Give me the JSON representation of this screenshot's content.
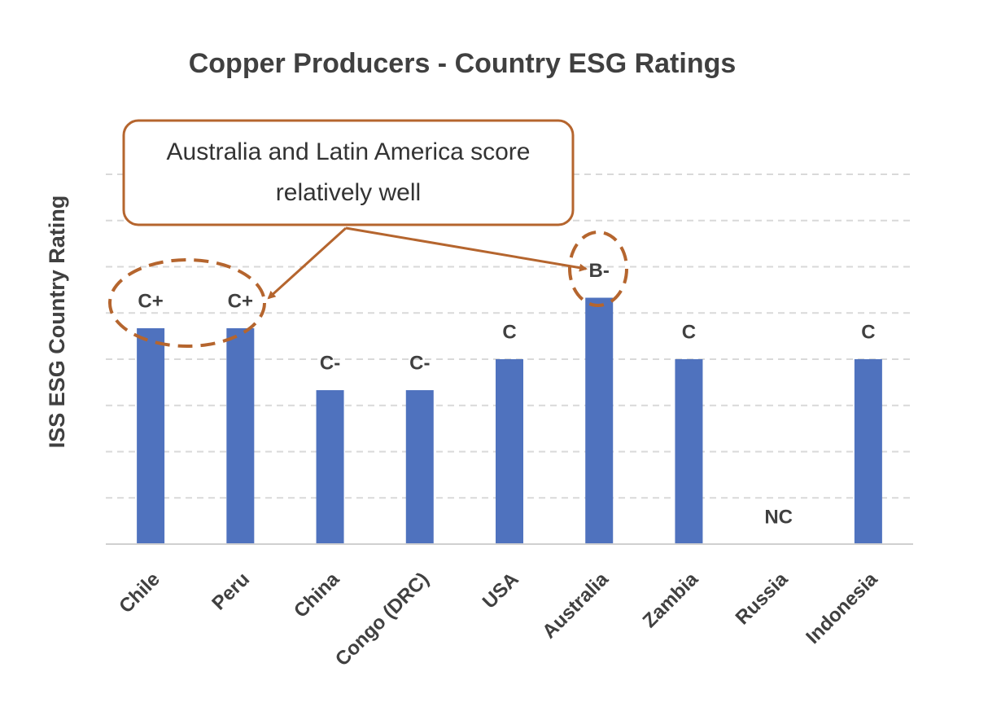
{
  "chart_data": {
    "type": "bar",
    "title": "Copper Producers - Country ESG Ratings",
    "y_label": "ISS ESG Country Rating",
    "annotation": "Australia and Latin America score relatively well",
    "categories": [
      "Chile",
      "Peru",
      "China",
      "Congo (DRC)",
      "USA",
      "Australia",
      "Zambia",
      "Russia",
      "Indonesia"
    ],
    "values": [
      4.67,
      4.67,
      3.33,
      3.33,
      4,
      5.33,
      4,
      0,
      4
    ],
    "value_labels": [
      "C+",
      "C+",
      "C-",
      "C-",
      "C",
      "B-",
      "C",
      "NC",
      "C"
    ],
    "color": "#4f72be",
    "ylim": [
      0,
      8
    ],
    "yticks": [
      1,
      2,
      3,
      4,
      5,
      6,
      7,
      8
    ],
    "grid": true
  }
}
